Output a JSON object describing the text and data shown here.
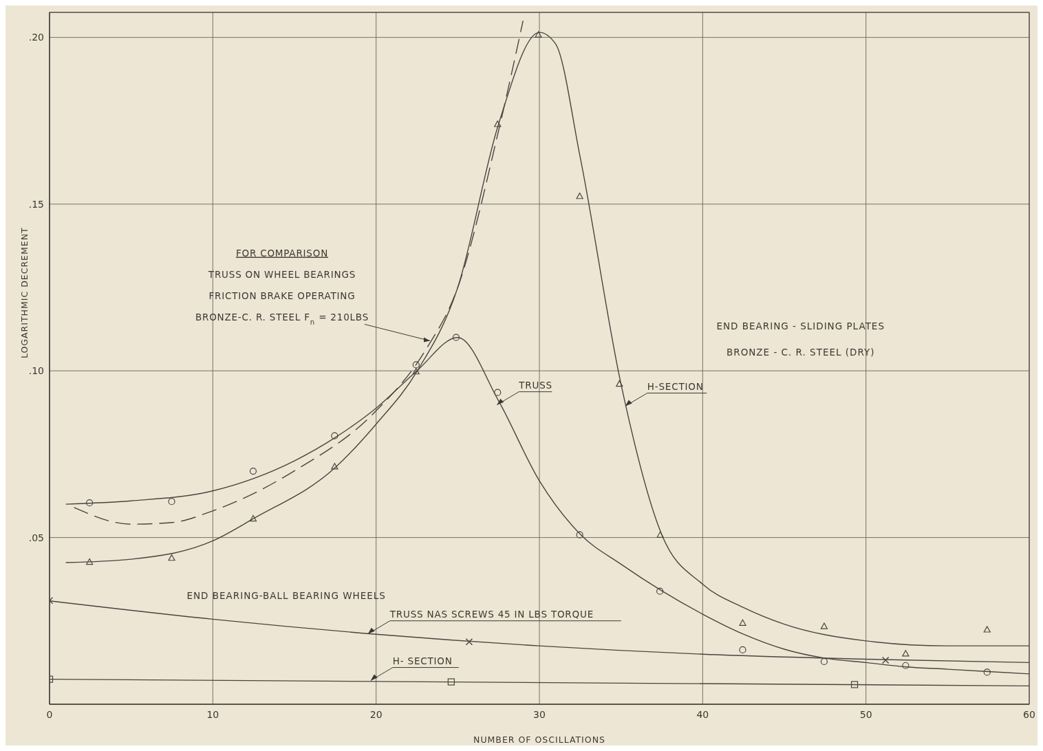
{
  "chart_data": {
    "type": "line",
    "xlabel": "NUMBER OF OSCILLATIONS",
    "ylabel": "LOGARITHMIC DECREMENT",
    "xlim": [
      0,
      60
    ],
    "xticks": [
      0,
      10,
      20,
      30,
      40,
      50,
      60
    ],
    "ylim": [
      0,
      0.2075
    ],
    "yticks": [
      {
        "value": 0.05,
        "label": ".05"
      },
      {
        "value": 0.1,
        "label": ".10"
      },
      {
        "value": 0.15,
        "label": ".15"
      },
      {
        "value": 0.2,
        "label": ".20"
      }
    ],
    "grid": true,
    "series": [
      {
        "color": "#4a4440",
        "marker": "none",
        "line_style": "solid",
        "x": [
          1,
          5,
          10,
          15,
          17.5,
          20,
          22.5,
          25,
          27.5,
          30,
          32.5,
          35,
          37.5,
          40,
          42.5,
          45,
          47.5,
          50,
          52.5,
          55,
          60
        ],
        "values": [
          0.06,
          0.061,
          0.064,
          0.073,
          0.08,
          0.0888,
          0.1,
          0.11,
          0.091,
          0.067,
          0.051,
          0.042,
          0.034,
          0.027,
          0.021,
          0.0165,
          0.0138,
          0.0125,
          0.0112,
          0.0105,
          0.0091
        ]
      },
      {
        "type": "scatter",
        "color": "#4a4440",
        "marker": "circle",
        "x": [
          2.45,
          7.48,
          12.47,
          17.46,
          22.45,
          24.9,
          27.44,
          32.47,
          37.38,
          42.45,
          47.44,
          52.43,
          57.42
        ],
        "values": [
          0.0604,
          0.0608,
          0.0699,
          0.0805,
          0.1018,
          0.11,
          0.0935,
          0.0508,
          0.0339,
          0.0163,
          0.0128,
          0.0116,
          0.0096
        ]
      },
      {
        "color": "#4a4440",
        "marker": "none",
        "line_style": "solid",
        "x": [
          1,
          5,
          10,
          12.5,
          17.5,
          20,
          22.5,
          25,
          27.5,
          30,
          31,
          32.5,
          35,
          37.5,
          40,
          42.5,
          45,
          50,
          55,
          60
        ],
        "values": [
          0.0425,
          0.0435,
          0.049,
          0.0557,
          0.071,
          0.084,
          0.0998,
          0.125,
          0.174,
          0.2015,
          0.198,
          0.164,
          0.096,
          0.0508,
          0.036,
          0.029,
          0.024,
          0.019,
          0.0175,
          0.0175
        ]
      },
      {
        "type": "scatter",
        "color": "#4a4440",
        "marker": "triangle",
        "x": [
          2.45,
          7.48,
          12.47,
          17.46,
          22.45,
          27.44,
          29.94,
          32.47,
          34.9,
          37.4,
          42.45,
          47.44,
          52.43,
          57.42
        ],
        "values": [
          0.0427,
          0.0439,
          0.0557,
          0.0713,
          0.0998,
          0.174,
          0.2008,
          0.1524,
          0.0961,
          0.0508,
          0.0244,
          0.0234,
          0.0152,
          0.0224
        ]
      },
      {
        "color": "#4a4440",
        "marker": "none",
        "line_style": "dashed",
        "x": [
          1.5,
          5,
          7.5,
          10,
          15,
          20,
          23,
          25,
          27.5,
          29
        ],
        "values": [
          0.059,
          0.054,
          0.0545,
          0.058,
          0.07,
          0.088,
          0.106,
          0.125,
          0.172,
          0.205
        ]
      },
      {
        "color": "#4a4440",
        "marker": "none",
        "line_style": "solid",
        "x": [
          0,
          10,
          20,
          30,
          40,
          50,
          60
        ],
        "values": [
          0.031,
          0.0255,
          0.021,
          0.0175,
          0.015,
          0.0135,
          0.0125
        ]
      },
      {
        "type": "scatter",
        "color": "#4a4440",
        "marker": "cross",
        "x": [
          0,
          25.7,
          51.2
        ],
        "values": [
          0.0311,
          0.0187,
          0.0132
        ]
      },
      {
        "color": "#4a4440",
        "marker": "none",
        "line_style": "solid",
        "x": [
          0,
          60
        ],
        "values": [
          0.0075,
          0.0055
        ]
      },
      {
        "type": "scatter",
        "color": "#4a4440",
        "marker": "square",
        "x": [
          0,
          24.6,
          49.3
        ],
        "values": [
          0.0075,
          0.0067,
          0.0059
        ]
      }
    ],
    "annotations": [
      {
        "text": "FOR COMPARISON\nTRUSS ON WHEEL BEARINGS\nFRICTION BRAKE OPERATING\nBRONZE-C. R. STEEL  F$_{n}$ = 210LBS",
        "x": 23.3,
        "y": 0.109
      },
      {
        "text": "TRUSS",
        "x": 27.4,
        "y": 0.0898
      },
      {
        "text": "H-SECTION",
        "x": 35.26,
        "y": 0.0894
      },
      {
        "text": "TRUSS  NAS SCREWS 45 IN LBS  TORQUE",
        "x": 19.5,
        "y": 0.0211
      },
      {
        "text": "H- SECTION",
        "x": 19.67,
        "y": 0.0071
      },
      "END BEARING - SLIDING PLATES",
      "BRONZE - C. R. STEEL (DRY)",
      "END BEARING-BALL BEARING WHEELS"
    ]
  }
}
